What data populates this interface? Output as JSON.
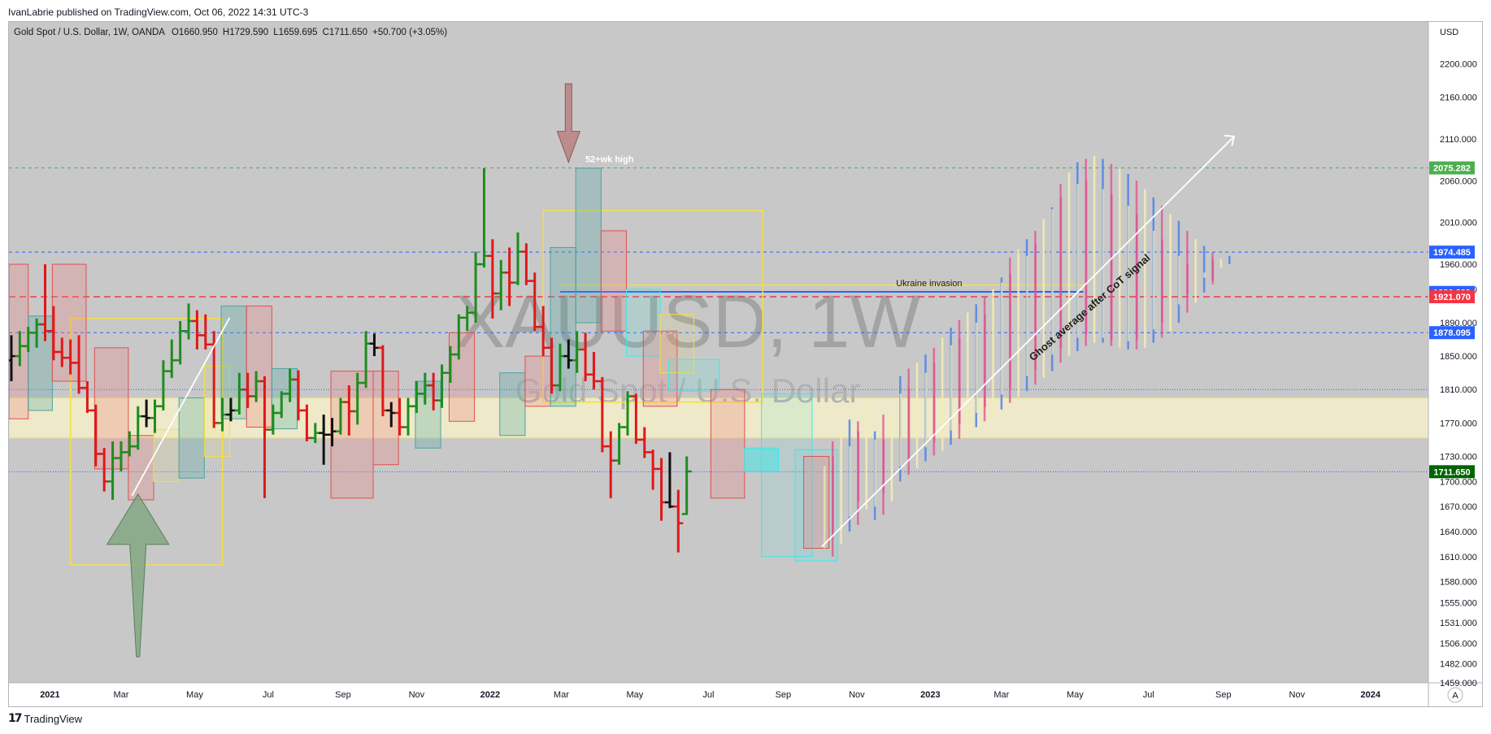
{
  "header": {
    "publisher": "IvanLabrie published on TradingView.com, Oct 06, 2022 14:31 UTC-3"
  },
  "legend": {
    "symbol": "Gold Spot / U.S. Dollar, 1W, OANDA",
    "open": "O1660.950",
    "high": "H1729.590",
    "low": "L1659.695",
    "close": "C1711.650",
    "change": "+50.700 (+3.05%)"
  },
  "watermark": {
    "ticker": "XAUUSD, 1W",
    "name": "Gold Spot / U.S. Dollar"
  },
  "footer": {
    "brand": "TradingView",
    "brand_mark": "17"
  },
  "autoscale_button": "A",
  "colors": {
    "background": "#c8c8c8",
    "bull": "#1e8c1e",
    "bear": "#e01818",
    "neutral": "#111111",
    "ghost_cream": "#f2ecb4",
    "ghost_blue": "#4d82e8",
    "ghost_pink": "#e0508a",
    "supply_zone": "#f5efc8",
    "tag_green": "#4caf50",
    "tag_blue": "#2962ff",
    "tag_red": "#f23645",
    "tag_last": "#006400"
  },
  "chart_data": {
    "type": "ohlc",
    "title": "Gold Spot / U.S. Dollar, 1W, OANDA",
    "y_unit": "USD",
    "ylim": [
      1459,
      2250
    ],
    "xlim": [
      "2020-11-28",
      "2024-02-18"
    ],
    "x_tick_labels": [
      {
        "label": "2021",
        "date": "2021-01-01"
      },
      {
        "label": "Mar",
        "date": "2021-03-01"
      },
      {
        "label": "May",
        "date": "2021-05-01"
      },
      {
        "label": "Jul",
        "date": "2021-07-01"
      },
      {
        "label": "Sep",
        "date": "2021-09-01"
      },
      {
        "label": "Nov",
        "date": "2021-11-01"
      },
      {
        "label": "2022",
        "date": "2022-01-01"
      },
      {
        "label": "Mar",
        "date": "2022-03-01"
      },
      {
        "label": "May",
        "date": "2022-05-01"
      },
      {
        "label": "Jul",
        "date": "2022-07-01"
      },
      {
        "label": "Sep",
        "date": "2022-09-01"
      },
      {
        "label": "Nov",
        "date": "2022-11-01"
      },
      {
        "label": "2023",
        "date": "2023-01-01"
      },
      {
        "label": "Mar",
        "date": "2023-03-01"
      },
      {
        "label": "May",
        "date": "2023-05-01"
      },
      {
        "label": "Jul",
        "date": "2023-07-01"
      },
      {
        "label": "Sep",
        "date": "2023-09-01"
      },
      {
        "label": "Nov",
        "date": "2023-11-01"
      },
      {
        "label": "2024",
        "date": "2024-01-01"
      }
    ],
    "y_tick_labels": [
      "2200.000",
      "2160.000",
      "2110.000",
      "2060.000",
      "2010.000",
      "1960.000",
      "1930.000",
      "1890.000",
      "1850.000",
      "1810.000",
      "1770.000",
      "1730.000",
      "1700.000",
      "1670.000",
      "1640.000",
      "1610.000",
      "1580.000",
      "1555.000",
      "1531.000",
      "1506.000",
      "1482.000",
      "1459.000"
    ],
    "price_tags": [
      {
        "label": "2075.282",
        "value": 2075.282,
        "color": "#4caf50"
      },
      {
        "label": "1974.485",
        "value": 1974.485,
        "color": "#2962ff"
      },
      {
        "label": "1926.290",
        "value": 1926.29,
        "color": "#2962ff"
      },
      {
        "label": "1921.070",
        "value": 1921.07,
        "color": "#f23645"
      },
      {
        "label": "1878.095",
        "value": 1878.095,
        "color": "#2962ff"
      },
      {
        "label": "1711.650",
        "value": 1711.65,
        "color": "#006400"
      }
    ],
    "horizontal_lines": [
      {
        "value": 2075.282,
        "color": "#4caf50",
        "style": "dashed"
      },
      {
        "value": 1974.485,
        "color": "#2962ff",
        "style": "dashed"
      },
      {
        "value": 1921.07,
        "color": "#f23645",
        "style": "dashed"
      },
      {
        "value": 1878.095,
        "color": "#2962ff",
        "style": "dashed"
      },
      {
        "value": 1810.0,
        "color": "#2962ff",
        "style": "dotted"
      },
      {
        "value": 1711.65,
        "color": "#2962ff",
        "style": "dotted"
      }
    ],
    "zone": {
      "from": 1752,
      "to": 1800
    },
    "annotations": [
      {
        "text": "52+wk high",
        "date": "2022-04-10",
        "value": 2082
      },
      {
        "text": "Ukraine invasion",
        "date": "2022-12-31",
        "value": 1934
      },
      {
        "text": "Ghost average after CoT signal",
        "date": "2023-05-15",
        "value": 1905,
        "rotate": -41
      }
    ],
    "arrows": [
      {
        "kind": "down",
        "date": "2022-03-07",
        "value_top": 2176,
        "value_bottom": 2082
      },
      {
        "kind": "up",
        "date": "2021-03-15",
        "value_top": 1685,
        "value_bottom": 1490
      }
    ],
    "trend_lines": [
      {
        "from": [
          "2021-03-10",
          1683
        ],
        "to": [
          "2021-05-30",
          1896
        ],
        "color": "#ffffff"
      },
      {
        "from": [
          "2022-10-03",
          1622
        ],
        "to": [
          "2023-09-10",
          2113
        ],
        "color": "#ffffff",
        "arrow": true
      }
    ],
    "boxes": [
      {
        "from": [
          "2021-01-18",
          1895
        ],
        "to": [
          "2021-05-24",
          1600
        ],
        "color": "yellow"
      },
      {
        "from": [
          "2022-02-14",
          2024
        ],
        "to": [
          "2022-08-15",
          1795
        ],
        "color": "yellow"
      }
    ],
    "series": [
      {
        "name": "Actual weekly bars",
        "start": "2020-11-30",
        "bars": [
          [
            1845,
            1875,
            1820,
            1850
          ],
          [
            1850,
            1880,
            1838,
            1862
          ],
          [
            1862,
            1885,
            1855,
            1878
          ],
          [
            1878,
            1895,
            1860,
            1888
          ],
          [
            1888,
            1960,
            1868,
            1880
          ],
          [
            1880,
            1910,
            1845,
            1855
          ],
          [
            1855,
            1872,
            1837,
            1848
          ],
          [
            1848,
            1870,
            1828,
            1842
          ],
          [
            1842,
            1875,
            1805,
            1812
          ],
          [
            1812,
            1820,
            1782,
            1785
          ],
          [
            1785,
            1792,
            1718,
            1733
          ],
          [
            1733,
            1740,
            1688,
            1700
          ],
          [
            1700,
            1748,
            1678,
            1728
          ],
          [
            1728,
            1748,
            1712,
            1735
          ],
          [
            1735,
            1760,
            1730,
            1742
          ],
          [
            1742,
            1790,
            1738,
            1778
          ],
          [
            1778,
            1798,
            1765,
            1776
          ],
          [
            1776,
            1798,
            1758,
            1790
          ],
          [
            1790,
            1845,
            1785,
            1832
          ],
          [
            1832,
            1870,
            1824,
            1845
          ],
          [
            1845,
            1892,
            1840,
            1880
          ],
          [
            1880,
            1913,
            1870,
            1892
          ],
          [
            1892,
            1905,
            1858,
            1875
          ],
          [
            1875,
            1900,
            1858,
            1864
          ],
          [
            1864,
            1880,
            1764,
            1770
          ],
          [
            1770,
            1800,
            1760,
            1780
          ],
          [
            1780,
            1800,
            1772,
            1785
          ],
          [
            1785,
            1830,
            1780,
            1810
          ],
          [
            1810,
            1830,
            1788,
            1802
          ],
          [
            1802,
            1832,
            1795,
            1820
          ],
          [
            1820,
            1826,
            1680,
            1762
          ],
          [
            1762,
            1792,
            1756,
            1782
          ],
          [
            1782,
            1808,
            1776,
            1805
          ],
          [
            1805,
            1835,
            1795,
            1822
          ],
          [
            1822,
            1833,
            1773,
            1785
          ],
          [
            1785,
            1792,
            1748,
            1752
          ],
          [
            1752,
            1770,
            1746,
            1758
          ],
          [
            1758,
            1780,
            1720,
            1756
          ],
          [
            1756,
            1776,
            1742,
            1760
          ],
          [
            1760,
            1800,
            1756,
            1795
          ],
          [
            1795,
            1815,
            1755,
            1784
          ],
          [
            1784,
            1830,
            1768,
            1818
          ],
          [
            1818,
            1880,
            1812,
            1865
          ],
          [
            1865,
            1877,
            1850,
            1860
          ],
          [
            1860,
            1863,
            1778,
            1785
          ],
          [
            1785,
            1795,
            1765,
            1782
          ],
          [
            1782,
            1800,
            1755,
            1765
          ],
          [
            1765,
            1800,
            1755,
            1790
          ],
          [
            1790,
            1820,
            1782,
            1805
          ],
          [
            1805,
            1830,
            1792,
            1815
          ],
          [
            1815,
            1830,
            1785,
            1797
          ],
          [
            1797,
            1840,
            1788,
            1830
          ],
          [
            1830,
            1862,
            1818,
            1852
          ],
          [
            1852,
            1900,
            1846,
            1896
          ],
          [
            1896,
            1910,
            1880,
            1902
          ],
          [
            1902,
            1975,
            1890,
            1960
          ],
          [
            1960,
            2075,
            1956,
            1970
          ],
          [
            1970,
            1990,
            1895,
            1925
          ],
          [
            1925,
            1965,
            1905,
            1950
          ],
          [
            1950,
            1980,
            1910,
            1938
          ],
          [
            1938,
            1998,
            1935,
            1975
          ],
          [
            1975,
            1985,
            1935,
            1940
          ],
          [
            1940,
            1950,
            1880,
            1885
          ],
          [
            1885,
            1910,
            1850,
            1860
          ],
          [
            1860,
            1872,
            1805,
            1815
          ],
          [
            1815,
            1865,
            1808,
            1850
          ],
          [
            1850,
            1870,
            1835,
            1845
          ],
          [
            1845,
            1880,
            1830,
            1858
          ],
          [
            1858,
            1878,
            1820,
            1828
          ],
          [
            1828,
            1855,
            1810,
            1820
          ],
          [
            1820,
            1825,
            1735,
            1742
          ],
          [
            1742,
            1760,
            1680,
            1725
          ],
          [
            1725,
            1770,
            1720,
            1765
          ],
          [
            1765,
            1808,
            1755,
            1802
          ],
          [
            1802,
            1805,
            1745,
            1750
          ],
          [
            1750,
            1765,
            1728,
            1735
          ],
          [
            1735,
            1738,
            1690,
            1715
          ],
          [
            1715,
            1728,
            1653,
            1675
          ],
          [
            1675,
            1735,
            1668,
            1670
          ],
          [
            1670,
            1690,
            1615,
            1650
          ],
          [
            1661,
            1730,
            1660,
            1712
          ]
        ]
      },
      {
        "name": "Ghost projection",
        "start": "2022-10-10",
        "ranges": [
          [
            1610,
            1748
          ],
          [
            1625,
            1760
          ],
          [
            1640,
            1774
          ],
          [
            1648,
            1772
          ],
          [
            1666,
            1790
          ],
          [
            1654,
            1760
          ],
          [
            1660,
            1780
          ],
          [
            1676,
            1780
          ],
          [
            1700,
            1826
          ],
          [
            1708,
            1835
          ],
          [
            1716,
            1842
          ],
          [
            1724,
            1852
          ],
          [
            1731,
            1860
          ],
          [
            1737,
            1872
          ],
          [
            1744,
            1884
          ],
          [
            1751,
            1893
          ],
          [
            1758,
            1902
          ],
          [
            1765,
            1912
          ],
          [
            1772,
            1920
          ],
          [
            1779,
            1930
          ],
          [
            1786,
            1944
          ],
          [
            1794,
            1968
          ],
          [
            1801,
            1978
          ],
          [
            1808,
            1990
          ],
          [
            1816,
            2000
          ],
          [
            1824,
            2014
          ],
          [
            1832,
            2028
          ],
          [
            1842,
            2056
          ],
          [
            1850,
            2070
          ],
          [
            1856,
            2082
          ],
          [
            1862,
            2086
          ],
          [
            1866,
            2090
          ],
          [
            1866,
            2086
          ],
          [
            1862,
            2080
          ],
          [
            1860,
            2074
          ],
          [
            1858,
            2068
          ],
          [
            1858,
            2060
          ],
          [
            1860,
            2050
          ],
          [
            1866,
            2040
          ],
          [
            1872,
            2030
          ],
          [
            1880,
            2020
          ],
          [
            1890,
            2012
          ],
          [
            1902,
            2000
          ],
          [
            1914,
            1990
          ],
          [
            1926,
            1982
          ],
          [
            1940,
            1974
          ],
          [
            1956,
            1966
          ],
          [
            1970,
            1960
          ]
        ]
      }
    ],
    "grid": false,
    "legend_position": "top-left"
  }
}
